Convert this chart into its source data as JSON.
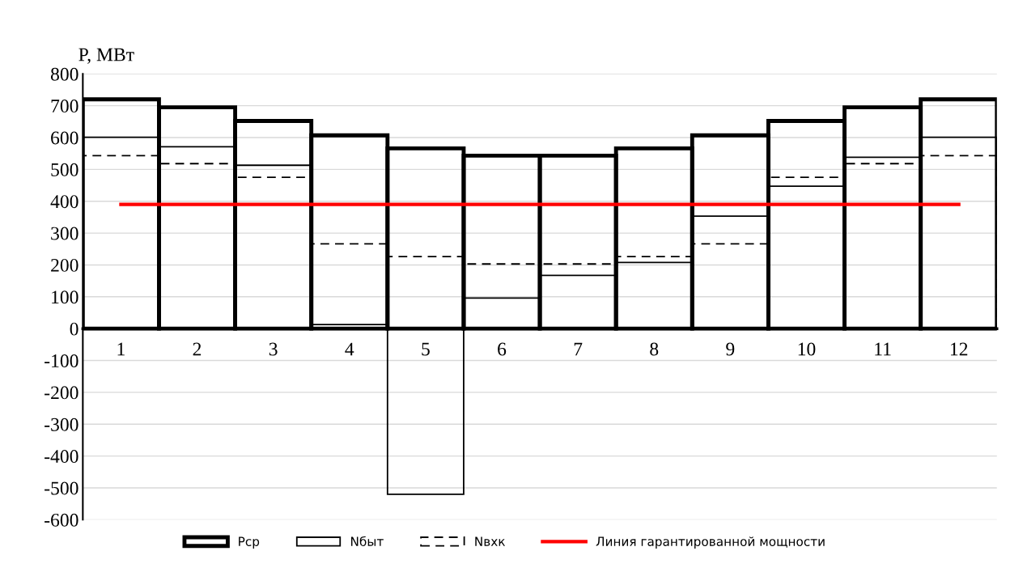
{
  "chart_data": {
    "type": "bar",
    "ylabel": "P, МВт",
    "categories": [
      "1",
      "2",
      "3",
      "4",
      "5",
      "6",
      "7",
      "8",
      "9",
      "10",
      "11",
      "12"
    ],
    "series": [
      {
        "name": "Pср",
        "color": "#000000",
        "line_style": "solid",
        "values": [
          720,
          695,
          652,
          607,
          566,
          543,
          543,
          566,
          607,
          652,
          695,
          720
        ]
      },
      {
        "name": "Nбыт",
        "color": "#000000",
        "line_style": "solid",
        "values": [
          601,
          571,
          513,
          13,
          -520,
          96,
          167,
          208,
          353,
          447,
          538,
          601
        ]
      },
      {
        "name": "Nвхк",
        "color": "#000000",
        "line_style": "dashed",
        "values": [
          543,
          518,
          475,
          266,
          226,
          203,
          203,
          226,
          266,
          475,
          518,
          543
        ]
      },
      {
        "name": "Линия гарантированной мощности",
        "type": "line",
        "color": "#ff0000",
        "line_style": "solid",
        "values": [
          390,
          390,
          390,
          390,
          390,
          390,
          390,
          390,
          390,
          390,
          390,
          390
        ]
      }
    ],
    "ylim": [
      -600,
      800
    ],
    "yticks": [
      -600,
      -500,
      -400,
      -300,
      -200,
      -100,
      0,
      100,
      200,
      300,
      400,
      500,
      600,
      700,
      800
    ],
    "grid": "y",
    "legend": "bottom"
  }
}
